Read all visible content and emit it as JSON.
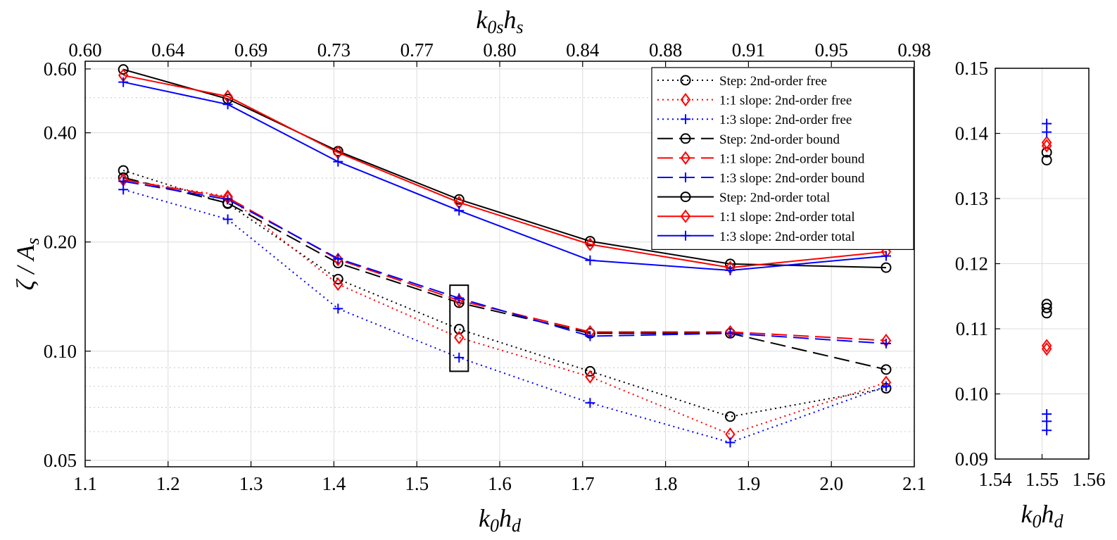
{
  "chart_data": [
    {
      "type": "line",
      "title": "",
      "xlabel": {
        "base": "k",
        "sub1": "0",
        "mid": "h",
        "sub2": "d"
      },
      "x2label": {
        "base": "k",
        "sub1": "0s",
        "mid": "h",
        "sub2": "s"
      },
      "ylabel": {
        "pre": "ζ / ",
        "base": "A",
        "sub": "s"
      },
      "y_scale": "log",
      "xlim": [
        1.1,
        2.1
      ],
      "ylim": [
        0.048,
        0.63
      ],
      "x_ticks": [
        "1.1",
        "1.2",
        "1.3",
        "1.4",
        "1.5",
        "1.6",
        "1.7",
        "1.8",
        "1.9",
        "2.0",
        "2.1"
      ],
      "x_tick_values": [
        1.1,
        1.2,
        1.3,
        1.4,
        1.5,
        1.6,
        1.7,
        1.8,
        1.9,
        2.0,
        2.1
      ],
      "x2_ticks": [
        "0.60",
        "0.64",
        "0.69",
        "0.73",
        "0.77",
        "0.80",
        "0.84",
        "0.88",
        "0.91",
        "0.95",
        "0.98"
      ],
      "y_ticks": [
        "0.05",
        "0.10",
        "0.20",
        "0.40",
        "0.60"
      ],
      "y_tick_values": [
        0.05,
        0.1,
        0.2,
        0.4,
        0.6
      ],
      "y_minor_grid": [
        0.06,
        0.07,
        0.08,
        0.09,
        0.3,
        0.5
      ],
      "grid": true,
      "legend_position": "top-right",
      "x": [
        1.146,
        1.272,
        1.405,
        1.551,
        1.709,
        1.878,
        2.066
      ],
      "series": [
        {
          "name": "Step: 2nd-order free",
          "color": "#000000",
          "line": "dotted",
          "marker": "circle",
          "values": [
            0.315,
            0.255,
            0.158,
            0.115,
            0.088,
            0.066,
            0.079
          ]
        },
        {
          "name": "1:1 slope: 2nd-order free",
          "color": "#ff0000",
          "line": "dotted",
          "marker": "diamond",
          "values": [
            0.297,
            0.267,
            0.153,
            0.109,
            0.085,
            0.059,
            0.082
          ]
        },
        {
          "name": "1:3 slope: 2nd-order free",
          "color": "#0000ff",
          "line": "dotted",
          "marker": "plus",
          "values": [
            0.279,
            0.231,
            0.131,
            0.096,
            0.072,
            0.056,
            0.08
          ]
        },
        {
          "name": "Step: 2nd-order bound",
          "color": "#000000",
          "line": "dashed",
          "marker": "circle",
          "values": [
            0.301,
            0.256,
            0.175,
            0.136,
            0.112,
            0.112,
            0.089
          ]
        },
        {
          "name": "1:1 slope: 2nd-order bound",
          "color": "#ff0000",
          "line": "dashed",
          "marker": "diamond",
          "values": [
            0.297,
            0.265,
            0.179,
            0.138,
            0.113,
            0.113,
            0.107
          ]
        },
        {
          "name": "1:3 slope: 2nd-order bound",
          "color": "#0000ff",
          "line": "dashed",
          "marker": "plus",
          "values": [
            0.294,
            0.262,
            0.18,
            0.14,
            0.11,
            0.112,
            0.105
          ]
        },
        {
          "name": "Step: 2nd-order total",
          "color": "#000000",
          "line": "solid",
          "marker": "circle",
          "values": [
            0.598,
            0.496,
            0.356,
            0.262,
            0.201,
            0.174,
            0.17
          ]
        },
        {
          "name": "1:1 slope: 2nd-order total",
          "color": "#ff0000",
          "line": "solid",
          "marker": "diamond",
          "values": [
            0.576,
            0.504,
            0.353,
            0.257,
            0.197,
            0.17,
            0.188
          ]
        },
        {
          "name": "1:3 slope: 2nd-order total",
          "color": "#0000ff",
          "line": "solid",
          "marker": "plus",
          "values": [
            0.552,
            0.479,
            0.333,
            0.244,
            0.178,
            0.167,
            0.183
          ]
        }
      ]
    },
    {
      "type": "scatter",
      "title": "",
      "xlabel": {
        "base": "k",
        "sub1": "0",
        "mid": "h",
        "sub2": "d"
      },
      "y_scale": "linear",
      "xlim": [
        1.54,
        1.56
      ],
      "ylim": [
        0.09,
        0.15
      ],
      "x_ticks": [
        "1.54",
        "1.55",
        "1.56"
      ],
      "x_tick_values": [
        1.54,
        1.55,
        1.56
      ],
      "y_ticks": [
        "0.09",
        "0.10",
        "0.11",
        "0.12",
        "0.13",
        "0.14",
        "0.15"
      ],
      "y_tick_values": [
        0.09,
        0.1,
        0.11,
        0.12,
        0.13,
        0.14,
        0.15
      ],
      "grid": true,
      "points": [
        {
          "x": 1.551,
          "y": 0.1371,
          "color": "#000000",
          "marker": "circle"
        },
        {
          "x": 1.551,
          "y": 0.1359,
          "color": "#000000",
          "marker": "circle"
        },
        {
          "x": 1.551,
          "y": 0.1138,
          "color": "#000000",
          "marker": "circle"
        },
        {
          "x": 1.551,
          "y": 0.1132,
          "color": "#000000",
          "marker": "circle"
        },
        {
          "x": 1.551,
          "y": 0.1124,
          "color": "#000000",
          "marker": "circle"
        },
        {
          "x": 1.551,
          "y": 0.1386,
          "color": "#ff0000",
          "marker": "diamond"
        },
        {
          "x": 1.551,
          "y": 0.1381,
          "color": "#ff0000",
          "marker": "diamond"
        },
        {
          "x": 1.551,
          "y": 0.1074,
          "color": "#ff0000",
          "marker": "diamond"
        },
        {
          "x": 1.551,
          "y": 0.1069,
          "color": "#ff0000",
          "marker": "diamond"
        },
        {
          "x": 1.551,
          "y": 0.1415,
          "color": "#0000ff",
          "marker": "plus"
        },
        {
          "x": 1.551,
          "y": 0.1402,
          "color": "#0000ff",
          "marker": "plus"
        },
        {
          "x": 1.551,
          "y": 0.0969,
          "color": "#0000ff",
          "marker": "plus"
        },
        {
          "x": 1.551,
          "y": 0.0958,
          "color": "#0000ff",
          "marker": "plus"
        },
        {
          "x": 1.551,
          "y": 0.0944,
          "color": "#0000ff",
          "marker": "plus"
        }
      ]
    }
  ]
}
